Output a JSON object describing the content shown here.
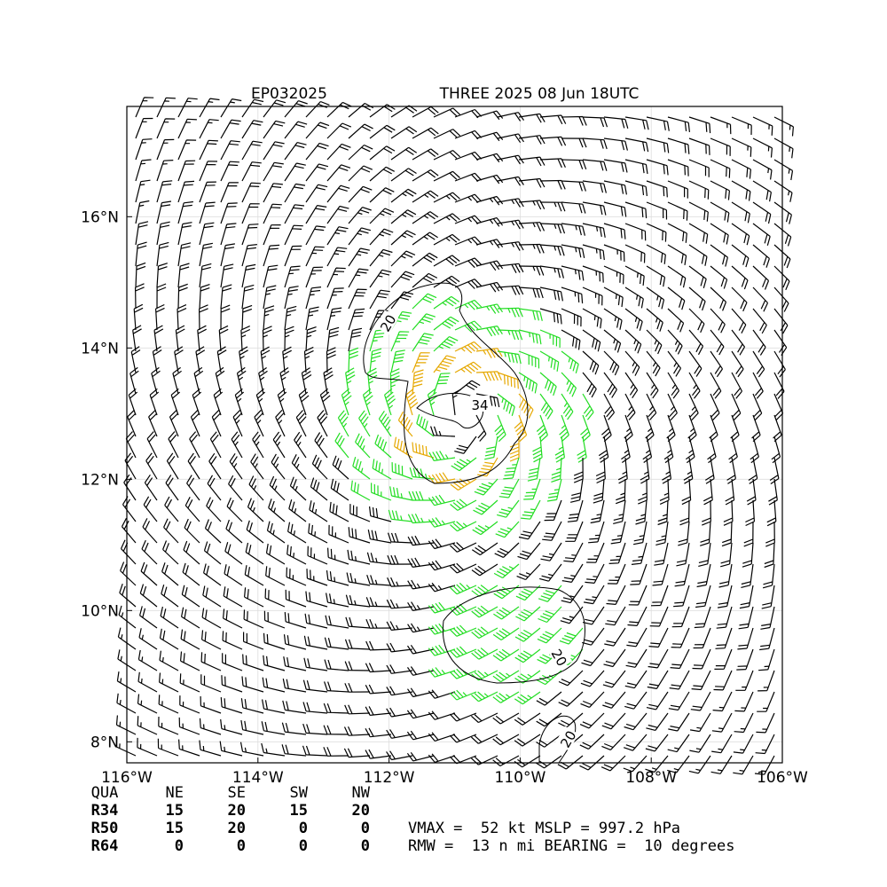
{
  "chart_data": {
    "type": "wind-barb-map",
    "title_left": "EP032025",
    "title_right": "THREE 2025 08 Jun 18UTC",
    "xlim": [
      -116,
      -106
    ],
    "ylim": [
      7.68,
      17.68
    ],
    "xticks": [
      {
        "value": -116,
        "label": "116°W"
      },
      {
        "value": -114,
        "label": "114°W"
      },
      {
        "value": -112,
        "label": "112°W"
      },
      {
        "value": -110,
        "label": "110°W"
      },
      {
        "value": -108,
        "label": "108°W"
      },
      {
        "value": -106,
        "label": "106°W"
      }
    ],
    "yticks": [
      {
        "value": 8,
        "label": "8°N"
      },
      {
        "value": 10,
        "label": "10°N"
      },
      {
        "value": 12,
        "label": "12°N"
      },
      {
        "value": 14,
        "label": "14°N"
      },
      {
        "value": 16,
        "label": "16°N"
      }
    ],
    "grid": true,
    "contour_labels": [
      20,
      34,
      20,
      20
    ],
    "radii_table": {
      "header": [
        "QUA",
        "NE",
        "SE",
        "SW",
        "NW"
      ],
      "rows": [
        [
          "R34",
          15,
          20,
          15,
          20
        ],
        [
          "R50",
          15,
          20,
          0,
          0
        ],
        [
          "R64",
          0,
          0,
          0,
          0
        ]
      ]
    },
    "info_lines": [
      "VMAX =  52 kt MSLP = 997.2 hPa",
      "RMW =  13 n mi BEARING =  10 degrees"
    ]
  }
}
